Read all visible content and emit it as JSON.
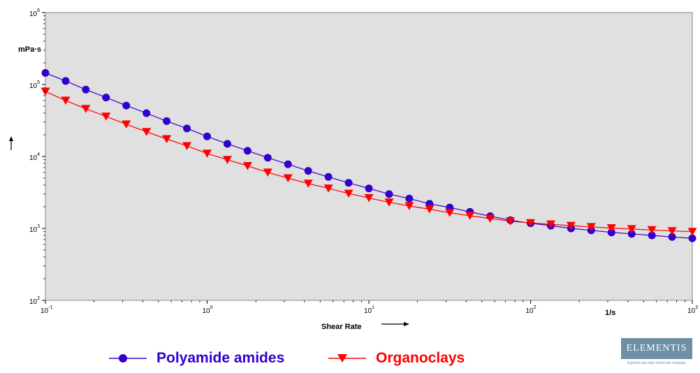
{
  "chart_data": {
    "type": "line",
    "xscale": "log",
    "yscale": "log",
    "xlim": [
      0.1,
      1000
    ],
    "ylim": [
      100,
      1000000
    ],
    "grid": false,
    "xlabel": "Shear Rate",
    "xunit": "1/s",
    "yunit": "mPa·s",
    "x_ticks": [
      {
        "base": "10",
        "exp": "-1"
      },
      {
        "base": "10",
        "exp": "0"
      },
      {
        "base": "10",
        "exp": "1"
      },
      {
        "base": "10",
        "exp": "2"
      },
      {
        "base": "10",
        "exp": "3"
      }
    ],
    "y_ticks": [
      {
        "base": "10",
        "exp": "2"
      },
      {
        "base": "10",
        "exp": "3"
      },
      {
        "base": "10",
        "exp": "4"
      },
      {
        "base": "10",
        "exp": "5"
      },
      {
        "base": "10",
        "exp": "6"
      }
    ],
    "x": [
      0.1,
      0.1334,
      0.1778,
      0.2371,
      0.3162,
      0.4217,
      0.5623,
      0.7499,
      1,
      1.334,
      1.778,
      2.371,
      3.162,
      4.217,
      5.623,
      7.499,
      10,
      13.34,
      17.78,
      23.71,
      31.62,
      42.17,
      56.23,
      74.99,
      100,
      133.4,
      177.8,
      237.1,
      316.2,
      421.7,
      562.3,
      749.9,
      1000
    ],
    "series": [
      {
        "name": "Polyamide amides",
        "color": "#3300cc",
        "marker": "circle",
        "values": [
          145000,
          112000,
          85000,
          66000,
          51000,
          40000,
          31000,
          24500,
          19000,
          15000,
          12000,
          9600,
          7800,
          6300,
          5200,
          4300,
          3600,
          3000,
          2600,
          2200,
          1950,
          1700,
          1480,
          1300,
          1180,
          1090,
          1000,
          940,
          880,
          840,
          800,
          760,
          730
        ]
      },
      {
        "name": "Organoclays",
        "color": "#ff0000",
        "marker": "triangle-down",
        "values": [
          80000,
          60000,
          46000,
          36000,
          28000,
          22000,
          17500,
          14000,
          11000,
          9000,
          7400,
          6000,
          5000,
          4200,
          3600,
          3050,
          2650,
          2300,
          2050,
          1850,
          1650,
          1500,
          1370,
          1260,
          1190,
          1140,
          1090,
          1050,
          1010,
          980,
          950,
          920,
          900
        ]
      }
    ]
  },
  "legend": [
    {
      "label": "Polyamide amides",
      "color": "#3300cc"
    },
    {
      "label": "Organoclays",
      "color": "#ff0000"
    }
  ],
  "logo": {
    "name": "ELEMENTIS",
    "tagline": "A global specialty chemicals company"
  },
  "colors": {
    "plot_background": "#e0e0e0"
  }
}
